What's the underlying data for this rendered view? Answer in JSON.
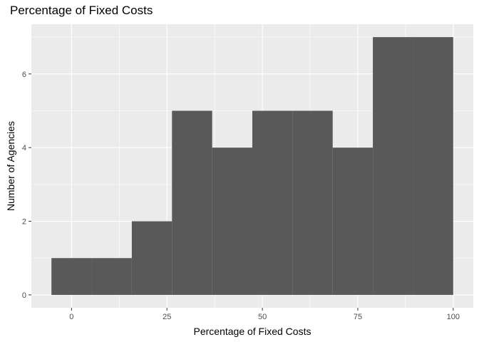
{
  "chart_data": {
    "type": "histogram",
    "title": "Percentage of Fixed Costs",
    "xlabel": "Percentage of Fixed Costs",
    "ylabel": "Number of Agencies",
    "bin_width": 10.5263,
    "bins": [
      {
        "start": -5.263,
        "end": 5.263,
        "count": 1
      },
      {
        "start": 5.263,
        "end": 15.789,
        "count": 1
      },
      {
        "start": 15.789,
        "end": 26.316,
        "count": 2
      },
      {
        "start": 26.316,
        "end": 36.842,
        "count": 5
      },
      {
        "start": 36.842,
        "end": 47.368,
        "count": 4
      },
      {
        "start": 47.368,
        "end": 57.895,
        "count": 5
      },
      {
        "start": 57.895,
        "end": 68.421,
        "count": 5
      },
      {
        "start": 68.421,
        "end": 78.947,
        "count": 4
      },
      {
        "start": 78.947,
        "end": 89.474,
        "count": 7
      },
      {
        "start": 89.474,
        "end": 100.0,
        "count": 7
      }
    ],
    "x_ticks": [
      0,
      25,
      50,
      75,
      100
    ],
    "y_ticks": [
      0,
      2,
      4,
      6
    ],
    "xlim": [
      -10.526,
      105.263
    ],
    "ylim": [
      -0.35,
      7.35
    ],
    "grid": true,
    "colors": {
      "panel_background": "#ebebeb",
      "grid": "#ffffff",
      "bar": "#595959",
      "text": "#4d4d4d"
    }
  }
}
